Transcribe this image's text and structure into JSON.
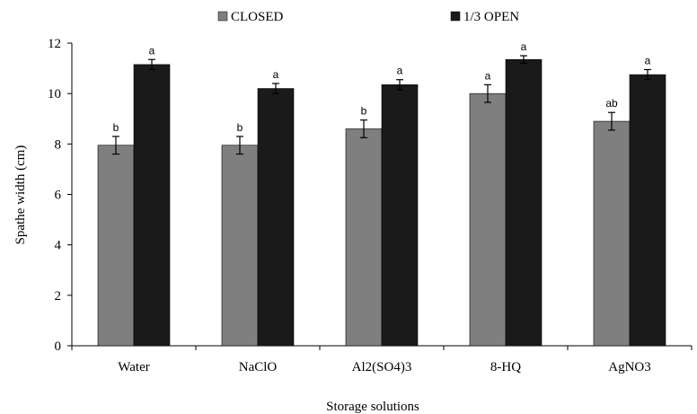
{
  "chart_data": {
    "type": "bar",
    "title": "",
    "xlabel": "Storage solutions",
    "ylabel": "Spathe width (cm)",
    "ylim": [
      0,
      12
    ],
    "yticks": [
      0,
      2,
      4,
      6,
      8,
      10,
      12
    ],
    "grid": false,
    "legend_position": "top",
    "categories": [
      "Water",
      "NaClO",
      "Al2(SO4)3",
      "8-HQ",
      "AgNO3"
    ],
    "series": [
      {
        "name": "CLOSED",
        "color": "#7f7f7f",
        "values": [
          7.95,
          7.95,
          8.6,
          10.0,
          8.9
        ],
        "errors": [
          0.35,
          0.35,
          0.35,
          0.35,
          0.35
        ],
        "letters": [
          "b",
          "b",
          "b",
          "a",
          "ab"
        ]
      },
      {
        "name": "1/3 OPEN",
        "color": "#1a1a1a",
        "values": [
          11.15,
          10.2,
          10.35,
          11.35,
          10.75
        ],
        "errors": [
          0.2,
          0.2,
          0.2,
          0.15,
          0.2
        ],
        "letters": [
          "a",
          "a",
          "a",
          "a",
          "a"
        ]
      }
    ]
  }
}
